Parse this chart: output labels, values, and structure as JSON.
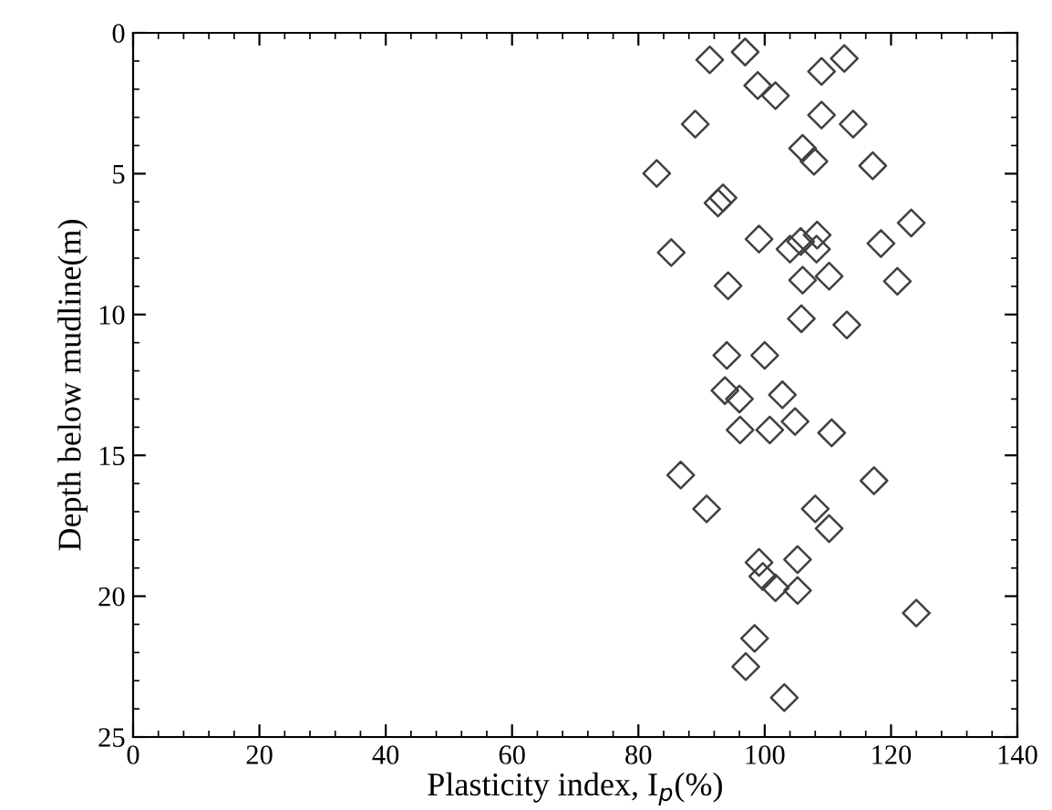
{
  "chart_data": {
    "type": "scatter",
    "xlabel": "Plasticity index, I$_{p}$(%)",
    "ylabel": "Depth below mudline(m)",
    "x": [
      91.3,
      96.9,
      112.6,
      109.0,
      98.9,
      101.7,
      89.0,
      109.0,
      114.0,
      106.0,
      107.8,
      117.1,
      82.9,
      93.4,
      92.6,
      123.2,
      99.1,
      85.2,
      104.0,
      105.7,
      108.3,
      108.2,
      118.4,
      94.2,
      106.0,
      110.2,
      121.0,
      105.8,
      113.0,
      94.0,
      100.0,
      93.7,
      96.0,
      102.8,
      96.1,
      100.8,
      104.8,
      110.6,
      86.7,
      117.3,
      90.8,
      108.0,
      110.2,
      99.1,
      105.2,
      99.7,
      101.7,
      105.2,
      124.0,
      98.4,
      97.0,
      103.1
    ],
    "values": [
      0.96,
      0.68,
      0.91,
      1.37,
      1.87,
      2.23,
      3.24,
      2.92,
      3.24,
      4.1,
      4.56,
      4.72,
      4.99,
      5.86,
      6.04,
      6.75,
      7.32,
      7.8,
      7.68,
      7.41,
      7.18,
      7.68,
      7.48,
      8.98,
      8.78,
      8.64,
      8.82,
      10.15,
      10.37,
      11.45,
      11.45,
      12.7,
      13.0,
      12.85,
      14.1,
      14.1,
      13.8,
      14.2,
      15.7,
      15.9,
      16.9,
      16.9,
      17.6,
      18.8,
      18.7,
      19.3,
      19.7,
      19.8,
      20.6,
      21.5,
      22.5,
      23.6
    ],
    "color": "#404040",
    "marker": "diamond",
    "xlim": [
      0,
      140
    ],
    "xticks": [
      0,
      20,
      40,
      60,
      80,
      100,
      120,
      140
    ],
    "ylim": [
      25,
      0
    ],
    "yticks": [
      0,
      5,
      10,
      15,
      20,
      25
    ],
    "grid": false,
    "legend": false
  }
}
